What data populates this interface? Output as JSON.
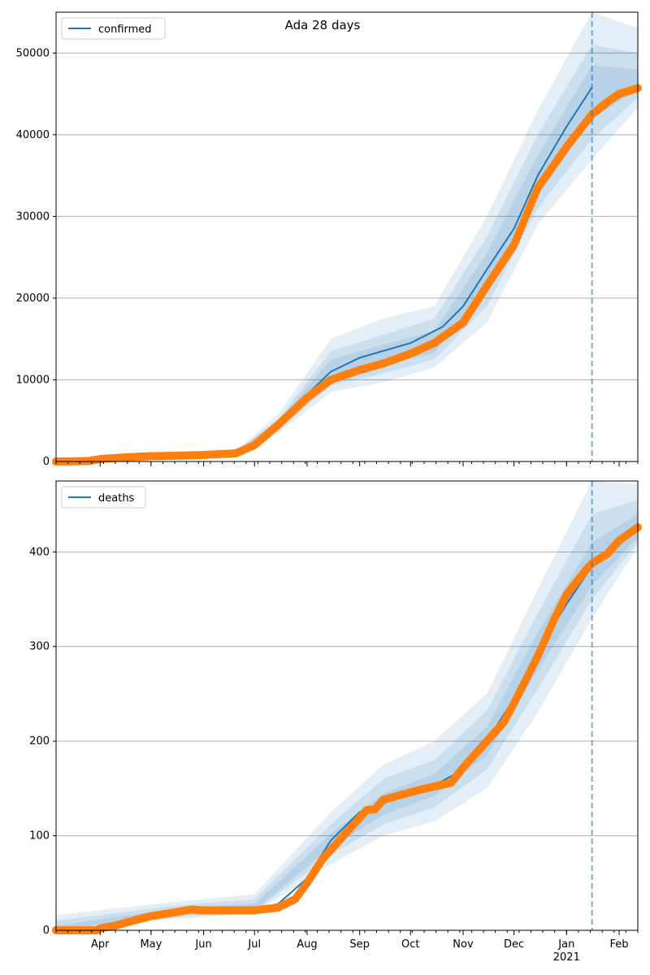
{
  "chart_data": [
    {
      "type": "line",
      "title": "Ada 28 days",
      "legend": {
        "placement": "top-left",
        "entries": [
          "confirmed"
        ]
      },
      "xlim": [
        "2020-03-06",
        "2021-02-12"
      ],
      "ylim": [
        0,
        55000
      ],
      "grid": "y",
      "xticks": [
        {
          "date": "2020-04-01",
          "label": "Apr"
        },
        {
          "date": "2020-05-01",
          "label": "May"
        },
        {
          "date": "2020-06-01",
          "label": "Jun"
        },
        {
          "date": "2020-07-01",
          "label": "Jul"
        },
        {
          "date": "2020-08-01",
          "label": "Aug"
        },
        {
          "date": "2020-09-01",
          "label": "Sep"
        },
        {
          "date": "2020-10-01",
          "label": "Oct"
        },
        {
          "date": "2020-11-01",
          "label": "Nov"
        },
        {
          "date": "2020-12-01",
          "label": "Dec"
        },
        {
          "date": "2021-01-01",
          "label": "Jan\n2021"
        },
        {
          "date": "2021-02-01",
          "label": "Feb"
        }
      ],
      "yticks": [
        0,
        10000,
        20000,
        30000,
        40000,
        50000
      ],
      "forecast_start": "2021-01-16",
      "model": {
        "name": "confirmed",
        "points": [
          [
            "2020-03-06",
            0
          ],
          [
            "2020-04-01",
            300
          ],
          [
            "2020-05-01",
            700
          ],
          [
            "2020-06-01",
            900
          ],
          [
            "2020-06-20",
            1100
          ],
          [
            "2020-07-01",
            2200
          ],
          [
            "2020-07-15",
            4500
          ],
          [
            "2020-08-01",
            8200
          ],
          [
            "2020-08-15",
            11000
          ],
          [
            "2020-09-01",
            12700
          ],
          [
            "2020-10-01",
            14500
          ],
          [
            "2020-10-20",
            16500
          ],
          [
            "2020-11-01",
            19000
          ],
          [
            "2020-11-15",
            23500
          ],
          [
            "2020-12-01",
            28500
          ],
          [
            "2020-12-15",
            35000
          ],
          [
            "2021-01-01",
            41000
          ],
          [
            "2021-01-16",
            45800
          ]
        ]
      },
      "bands": [
        {
          "lower": [
            [
              "2020-06-20",
              900
            ],
            [
              "2020-07-15",
              3500
            ],
            [
              "2020-08-15",
              8500
            ],
            [
              "2020-09-15",
              9700
            ],
            [
              "2020-10-15",
              11500
            ],
            [
              "2020-11-15",
              17000
            ],
            [
              "2020-12-15",
              29000
            ],
            [
              "2021-01-16",
              37000
            ],
            [
              "2021-02-12",
              43300
            ]
          ],
          "upper": [
            [
              "2020-06-20",
              1300
            ],
            [
              "2020-07-15",
              5800
            ],
            [
              "2020-08-15",
              15000
            ],
            [
              "2020-09-15",
              17500
            ],
            [
              "2020-10-15",
              19000
            ],
            [
              "2020-11-15",
              30000
            ],
            [
              "2020-12-15",
              43000
            ],
            [
              "2021-01-16",
              55000
            ],
            [
              "2021-02-12",
              53000
            ]
          ]
        },
        {
          "lower": [
            [
              "2020-06-20",
              950
            ],
            [
              "2020-07-15",
              3900
            ],
            [
              "2020-08-15",
              9300
            ],
            [
              "2020-09-15",
              10800
            ],
            [
              "2020-10-15",
              12500
            ],
            [
              "2020-11-15",
              19000
            ],
            [
              "2020-12-15",
              31000
            ],
            [
              "2021-01-16",
              39500
            ],
            [
              "2021-02-12",
              44500
            ]
          ],
          "upper": [
            [
              "2020-06-20",
              1250
            ],
            [
              "2020-07-15",
              5200
            ],
            [
              "2020-08-15",
              13500
            ],
            [
              "2020-09-15",
              15500
            ],
            [
              "2020-10-15",
              17500
            ],
            [
              "2020-11-15",
              27500
            ],
            [
              "2020-12-15",
              40000
            ],
            [
              "2021-01-16",
              51000
            ],
            [
              "2021-02-12",
              50000
            ]
          ]
        },
        {
          "lower": [
            [
              "2020-06-20",
              1000
            ],
            [
              "2020-07-15",
              4200
            ],
            [
              "2020-08-15",
              10000
            ],
            [
              "2020-09-15",
              11800
            ],
            [
              "2020-10-15",
              13300
            ],
            [
              "2020-11-15",
              21000
            ],
            [
              "2020-12-15",
              32500
            ],
            [
              "2021-01-16",
              42000
            ],
            [
              "2021-02-12",
              45500
            ]
          ],
          "upper": [
            [
              "2020-06-20",
              1200
            ],
            [
              "2020-07-15",
              4900
            ],
            [
              "2020-08-15",
              12500
            ],
            [
              "2020-09-15",
              14300
            ],
            [
              "2020-10-15",
              16000
            ],
            [
              "2020-11-15",
              25500
            ],
            [
              "2020-12-15",
              37500
            ],
            [
              "2021-01-16",
              48500
            ],
            [
              "2021-02-12",
              48000
            ]
          ]
        }
      ],
      "observed": {
        "points": [
          [
            "2020-03-06",
            0
          ],
          [
            "2020-03-25",
            50
          ],
          [
            "2020-04-01",
            300
          ],
          [
            "2020-04-15",
            500
          ],
          [
            "2020-05-01",
            650
          ],
          [
            "2020-05-15",
            700
          ],
          [
            "2020-06-01",
            800
          ],
          [
            "2020-06-20",
            1000
          ],
          [
            "2020-07-01",
            2000
          ],
          [
            "2020-07-15",
            4500
          ],
          [
            "2020-08-01",
            7800
          ],
          [
            "2020-08-15",
            10000
          ],
          [
            "2020-09-01",
            11200
          ],
          [
            "2020-09-15",
            12000
          ],
          [
            "2020-10-01",
            13200
          ],
          [
            "2020-10-15",
            14500
          ],
          [
            "2020-11-01",
            17000
          ],
          [
            "2020-11-15",
            21500
          ],
          [
            "2020-12-01",
            26500
          ],
          [
            "2020-12-15",
            33500
          ],
          [
            "2021-01-01",
            38500
          ],
          [
            "2021-01-16",
            42500
          ],
          [
            "2021-01-25",
            44000
          ],
          [
            "2021-02-01",
            45000
          ],
          [
            "2021-02-12",
            45700
          ]
        ]
      }
    },
    {
      "type": "line",
      "title": "",
      "legend": {
        "placement": "top-left",
        "entries": [
          "deaths"
        ]
      },
      "xlim": [
        "2020-03-06",
        "2021-02-12"
      ],
      "ylim": [
        0,
        475
      ],
      "grid": "y",
      "yticks": [
        0,
        100,
        200,
        300,
        400
      ],
      "forecast_start": "2021-01-16",
      "model": {
        "name": "deaths",
        "points": [
          [
            "2020-03-06",
            0
          ],
          [
            "2020-04-01",
            2
          ],
          [
            "2020-04-15",
            8
          ],
          [
            "2020-05-01",
            15
          ],
          [
            "2020-05-20",
            20
          ],
          [
            "2020-06-15",
            21
          ],
          [
            "2020-07-01",
            22
          ],
          [
            "2020-07-15",
            28
          ],
          [
            "2020-08-01",
            55
          ],
          [
            "2020-08-15",
            95
          ],
          [
            "2020-09-01",
            125
          ],
          [
            "2020-09-15",
            135
          ],
          [
            "2020-10-01",
            145
          ],
          [
            "2020-10-15",
            153
          ],
          [
            "2020-11-01",
            170
          ],
          [
            "2020-11-15",
            200
          ],
          [
            "2020-12-01",
            245
          ],
          [
            "2020-12-15",
            295
          ],
          [
            "2021-01-01",
            345
          ],
          [
            "2021-01-16",
            385
          ]
        ]
      },
      "bands": [
        {
          "lower": [
            [
              "2020-03-06",
              0
            ],
            [
              "2020-05-15",
              12
            ],
            [
              "2020-07-01",
              18
            ],
            [
              "2020-08-15",
              70
            ],
            [
              "2020-09-15",
              100
            ],
            [
              "2020-10-15",
              115
            ],
            [
              "2020-11-15",
              150
            ],
            [
              "2020-12-15",
              230
            ],
            [
              "2021-01-16",
              330
            ],
            [
              "2021-02-12",
              405
            ]
          ],
          "upper": [
            [
              "2020-03-06",
              16
            ],
            [
              "2020-05-15",
              30
            ],
            [
              "2020-07-01",
              38
            ],
            [
              "2020-08-15",
              125
            ],
            [
              "2020-09-15",
              175
            ],
            [
              "2020-10-15",
              200
            ],
            [
              "2020-11-15",
              250
            ],
            [
              "2020-12-15",
              360
            ],
            [
              "2021-01-16",
              475
            ],
            [
              "2021-02-12",
              472
            ]
          ]
        },
        {
          "lower": [
            [
              "2020-03-06",
              0
            ],
            [
              "2020-05-15",
              14
            ],
            [
              "2020-07-01",
              20
            ],
            [
              "2020-08-15",
              80
            ],
            [
              "2020-09-15",
              112
            ],
            [
              "2020-10-15",
              130
            ],
            [
              "2020-11-15",
              170
            ],
            [
              "2020-12-15",
              255
            ],
            [
              "2021-01-16",
              350
            ],
            [
              "2021-02-12",
              410
            ]
          ],
          "upper": [
            [
              "2020-03-06",
              10
            ],
            [
              "2020-05-15",
              26
            ],
            [
              "2020-07-01",
              33
            ],
            [
              "2020-08-15",
              112
            ],
            [
              "2020-09-15",
              160
            ],
            [
              "2020-10-15",
              180
            ],
            [
              "2020-11-15",
              232
            ],
            [
              "2020-12-15",
              335
            ],
            [
              "2021-01-16",
              440
            ],
            [
              "2021-02-12",
              455
            ]
          ]
        },
        {
          "lower": [
            [
              "2020-03-06",
              0
            ],
            [
              "2020-05-15",
              16
            ],
            [
              "2020-07-01",
              21
            ],
            [
              "2020-08-15",
              88
            ],
            [
              "2020-09-15",
              122
            ],
            [
              "2020-10-15",
              142
            ],
            [
              "2020-11-15",
              185
            ],
            [
              "2020-12-15",
              275
            ],
            [
              "2021-01-16",
              365
            ],
            [
              "2021-02-12",
              415
            ]
          ],
          "upper": [
            [
              "2020-03-06",
              5
            ],
            [
              "2020-05-15",
              23
            ],
            [
              "2020-07-01",
              28
            ],
            [
              "2020-08-15",
              102
            ],
            [
              "2020-09-15",
              145
            ],
            [
              "2020-10-15",
              165
            ],
            [
              "2020-11-15",
              215
            ],
            [
              "2020-12-15",
              315
            ],
            [
              "2021-01-16",
              410
            ],
            [
              "2021-02-12",
              440
            ]
          ]
        }
      ],
      "observed": {
        "points": [
          [
            "2020-03-06",
            0
          ],
          [
            "2020-03-30",
            0
          ],
          [
            "2020-04-01",
            2
          ],
          [
            "2020-04-10",
            5
          ],
          [
            "2020-04-20",
            10
          ],
          [
            "2020-05-01",
            15
          ],
          [
            "2020-05-15",
            19
          ],
          [
            "2020-05-25",
            22
          ],
          [
            "2020-06-01",
            21
          ],
          [
            "2020-06-30",
            21
          ],
          [
            "2020-07-15",
            24
          ],
          [
            "2020-07-25",
            33
          ],
          [
            "2020-08-01",
            50
          ],
          [
            "2020-08-10",
            75
          ],
          [
            "2020-08-20",
            95
          ],
          [
            "2020-08-30",
            115
          ],
          [
            "2020-09-05",
            127
          ],
          [
            "2020-09-10",
            128
          ],
          [
            "2020-09-15",
            138
          ],
          [
            "2020-10-01",
            146
          ],
          [
            "2020-10-10",
            150
          ],
          [
            "2020-10-25",
            156
          ],
          [
            "2020-11-01",
            172
          ],
          [
            "2020-11-15",
            200
          ],
          [
            "2020-11-25",
            220
          ],
          [
            "2020-12-01",
            240
          ],
          [
            "2020-12-10",
            272
          ],
          [
            "2020-12-15",
            290
          ],
          [
            "2020-12-25",
            330
          ],
          [
            "2021-01-01",
            355
          ],
          [
            "2021-01-12",
            380
          ],
          [
            "2021-01-16",
            388
          ],
          [
            "2021-01-25",
            398
          ],
          [
            "2021-02-01",
            412
          ],
          [
            "2021-02-12",
            426
          ]
        ]
      }
    }
  ],
  "colors": {
    "model_line": "#1f77b4",
    "observed_marker": "#ff7f0e",
    "band": "#1f77b4",
    "forecast_line": "#1f77b4",
    "grid": "#b0b0b0"
  }
}
